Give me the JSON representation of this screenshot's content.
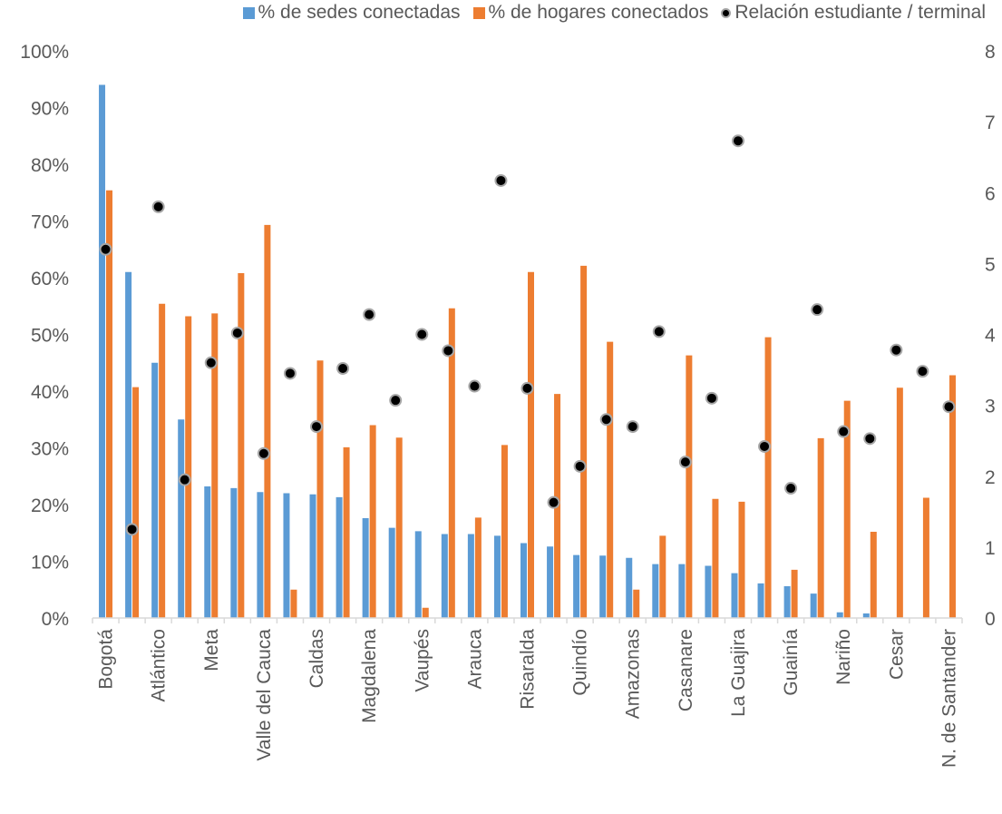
{
  "chart_data": {
    "type": "bar",
    "legend_position": "top",
    "categories": [
      "Bogotá",
      "",
      "Atlántico",
      "",
      "Meta",
      "",
      "Valle del Cauca",
      "",
      "Caldas",
      "",
      "Magdalena",
      "",
      "Vaupés",
      "",
      "Arauca",
      "",
      "Risaralda",
      "",
      "Quindío",
      "",
      "Amazonas",
      "",
      "Casanare",
      "",
      "La Guajira",
      "",
      "Guainía",
      "",
      "Nariño",
      "",
      "Cesar",
      "",
      "N. de Santander"
    ],
    "series": [
      {
        "name": "% de sedes conectadas",
        "type": "bar",
        "axis": "left",
        "color": "#5b9bd5",
        "values": [
          0.94,
          0.61,
          0.45,
          0.35,
          0.232,
          0.229,
          0.222,
          0.22,
          0.218,
          0.213,
          0.176,
          0.159,
          0.153,
          0.148,
          0.148,
          0.145,
          0.132,
          0.126,
          0.111,
          0.11,
          0.106,
          0.095,
          0.095,
          0.092,
          0.079,
          0.061,
          0.056,
          0.043,
          0.01,
          0.008,
          0,
          0,
          0
        ]
      },
      {
        "name": "% de hogares conectados",
        "type": "bar",
        "axis": "left",
        "color": "#ed7d31",
        "values": [
          0.754,
          0.407,
          0.554,
          0.532,
          0.537,
          0.608,
          0.693,
          0.05,
          0.454,
          0.301,
          0.34,
          0.318,
          0.018,
          0.546,
          0.177,
          0.305,
          0.61,
          0.395,
          0.621,
          0.487,
          0.05,
          0.145,
          0.463,
          0.21,
          0.205,
          0.495,
          0.085,
          0.317,
          0.383,
          0.152,
          0.406,
          0.212,
          0.428
        ]
      },
      {
        "name": "Relación estudiante / terminal",
        "type": "scatter",
        "axis": "right",
        "color": "#000000",
        "values": [
          5.2,
          1.25,
          5.8,
          1.95,
          3.6,
          4.02,
          2.32,
          3.45,
          2.7,
          3.52,
          4.28,
          3.07,
          4.0,
          3.77,
          3.27,
          6.17,
          3.24,
          1.63,
          2.14,
          2.8,
          2.7,
          4.04,
          2.2,
          3.1,
          6.73,
          2.42,
          1.83,
          4.35,
          2.63,
          2.53,
          3.78,
          3.48,
          2.98
        ]
      }
    ],
    "y_left": {
      "ylim": [
        0,
        1
      ],
      "ticks": [
        "0%",
        "10%",
        "20%",
        "30%",
        "40%",
        "50%",
        "60%",
        "70%",
        "80%",
        "90%",
        "100%"
      ]
    },
    "y_right": {
      "ylim": [
        0,
        8
      ],
      "ticks": [
        "0",
        "1",
        "2",
        "3",
        "4",
        "5",
        "6",
        "7",
        "8"
      ]
    },
    "grid": false
  }
}
